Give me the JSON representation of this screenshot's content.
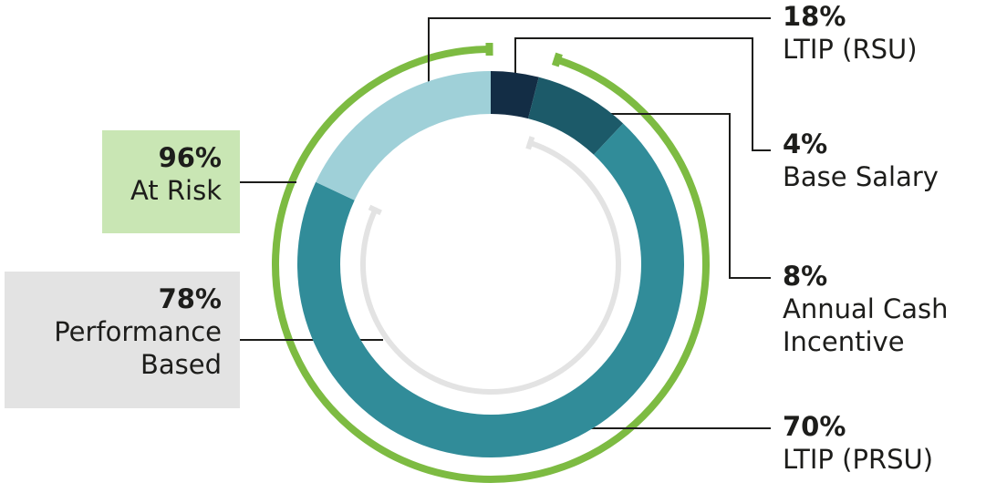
{
  "chart_data": {
    "type": "donut",
    "categories": [
      "Base Salary",
      "Annual Cash Incentive",
      "LTIP (PRSU)",
      "LTIP (RSU)"
    ],
    "values": [
      4,
      8,
      70,
      18
    ],
    "value_labels": [
      "4%",
      "8%",
      "70%",
      "18%"
    ],
    "colors": [
      "#132d45",
      "#1c5a69",
      "#318c99",
      "#9fd0d8"
    ],
    "groups": [
      {
        "name": "At Risk",
        "value": 96,
        "value_label": "96%",
        "color": "#7dbb42",
        "box_color": "#c9e6b4"
      },
      {
        "name": "Performance Based",
        "value": 78,
        "value_label": "78%",
        "color": "#e3e3e3",
        "box_color": "#e3e3e3"
      }
    ]
  }
}
